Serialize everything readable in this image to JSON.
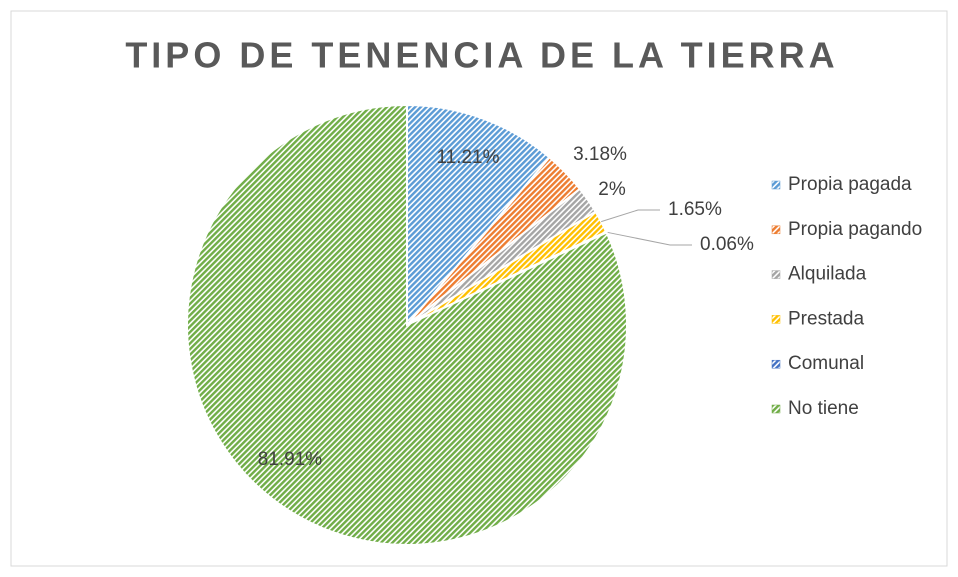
{
  "chart_data": {
    "type": "pie",
    "title": "TIPO DE TENENCIA DE LA TIERRA",
    "categories": [
      "Propia pagada",
      "Propia pagando",
      "Alquilada",
      "Prestada",
      "Comunal",
      "No tiene"
    ],
    "values": [
      11.21,
      3.18,
      2,
      1.65,
      0.06,
      81.91
    ],
    "value_labels": [
      "11.21%",
      "3.18%",
      "2%",
      "1.65%",
      "0.06%",
      "81.91%"
    ],
    "colors": [
      "#5b9bd5",
      "#ed7d31",
      "#a5a5a5",
      "#ffc000",
      "#4472c4",
      "#70ad47"
    ],
    "legend": "right"
  }
}
